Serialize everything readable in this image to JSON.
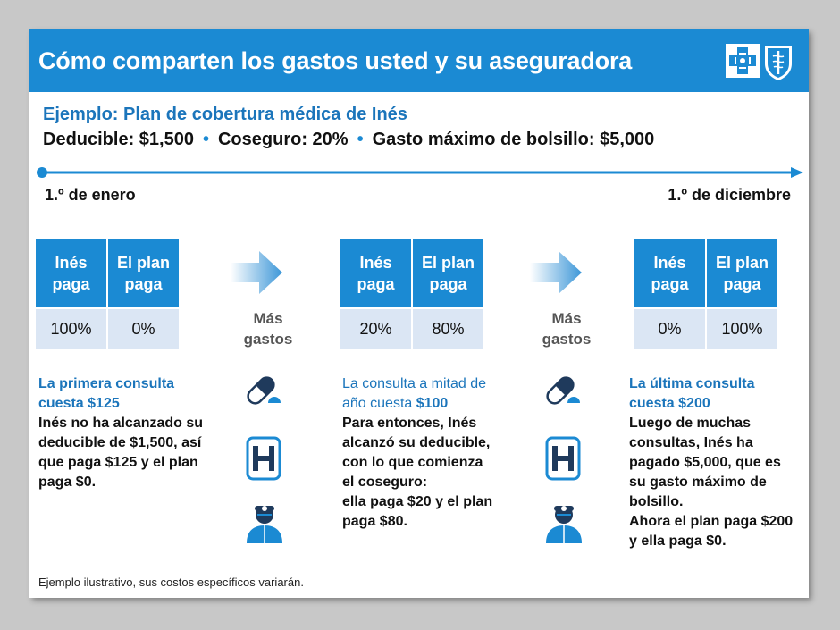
{
  "header": {
    "title": "Cómo comparten los gastos usted y su aseguradora"
  },
  "example": {
    "subtitle": "Ejemplo:  Plan de cobertura médica de Inés",
    "deductible": "Deducible: $1,500",
    "coinsurance": "Coseguro: 20%",
    "out_of_pocket_max": "Gasto máximo de bolsillo: $5,000",
    "separator": "•"
  },
  "timeline": {
    "start": "1.º de enero",
    "end": "1.º de diciembre"
  },
  "columns": [
    {
      "header_ines": "Inés paga",
      "header_plan": "El plan paga",
      "ines_pays": "100%",
      "plan_pays": "0%",
      "desc_title": "La primera consulta cuesta $125",
      "desc_body": "Inés no ha alcanzado su deducible de $1,500, así que paga $125 y el plan paga $0."
    },
    {
      "header_ines": "Inés paga",
      "header_plan": "El plan paga",
      "ines_pays": "20%",
      "plan_pays": "80%",
      "desc_title_a": "La consulta a mitad de año cuesta",
      "desc_title_b": "$100",
      "desc_body": "Para entonces, Inés alcanzó su deducible, con lo que comienza el coseguro:",
      "desc_body2": "ella paga $20 y el plan paga $80."
    },
    {
      "header_ines": "Inés paga",
      "header_plan": "El plan paga",
      "ines_pays": "0%",
      "plan_pays": "100%",
      "desc_title": "La última consulta cuesta $200",
      "desc_body": "Luego de muchas consultas, Inés ha pagado $5,000, que es su gasto máximo de bolsillo.",
      "desc_body2": "Ahora el plan paga $200 y ella paga $0."
    }
  ],
  "transition": {
    "label": "Más gastos",
    "icons": [
      "pill-icon",
      "hospital-icon",
      "doctor-icon"
    ]
  },
  "footnote": "Ejemplo ilustrativo, sus costos específicos variarán.",
  "colors": {
    "brand_blue": "#1b8ad3",
    "text_blue": "#1b75bb",
    "cell_light": "#dbe6f4"
  }
}
